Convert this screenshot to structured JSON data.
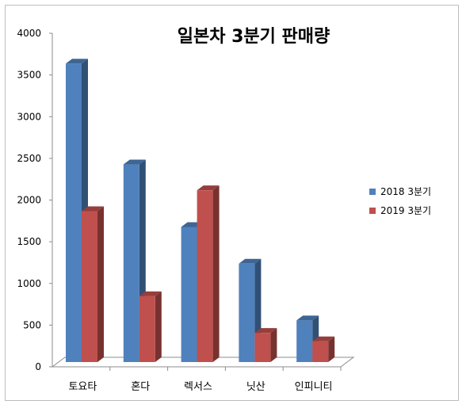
{
  "chart_data": {
    "type": "bar",
    "title": "일본차 3분기 판매량",
    "categories": [
      "토요타",
      "혼다",
      "렉서스",
      "닛산",
      "인피니티"
    ],
    "series": [
      {
        "name": "2018 3분기",
        "values": [
          3580,
          2370,
          1620,
          1180,
          500
        ],
        "color": "#4F81BD"
      },
      {
        "name": "2019 3분기",
        "values": [
          1810,
          790,
          2060,
          350,
          250
        ],
        "color": "#C0504D"
      }
    ],
    "ylim": [
      0,
      4000
    ],
    "yticks": [
      0,
      500,
      1000,
      1500,
      2000,
      2500,
      3000,
      3500,
      4000
    ],
    "grid": false,
    "legend_position": "right",
    "three_d": true
  }
}
